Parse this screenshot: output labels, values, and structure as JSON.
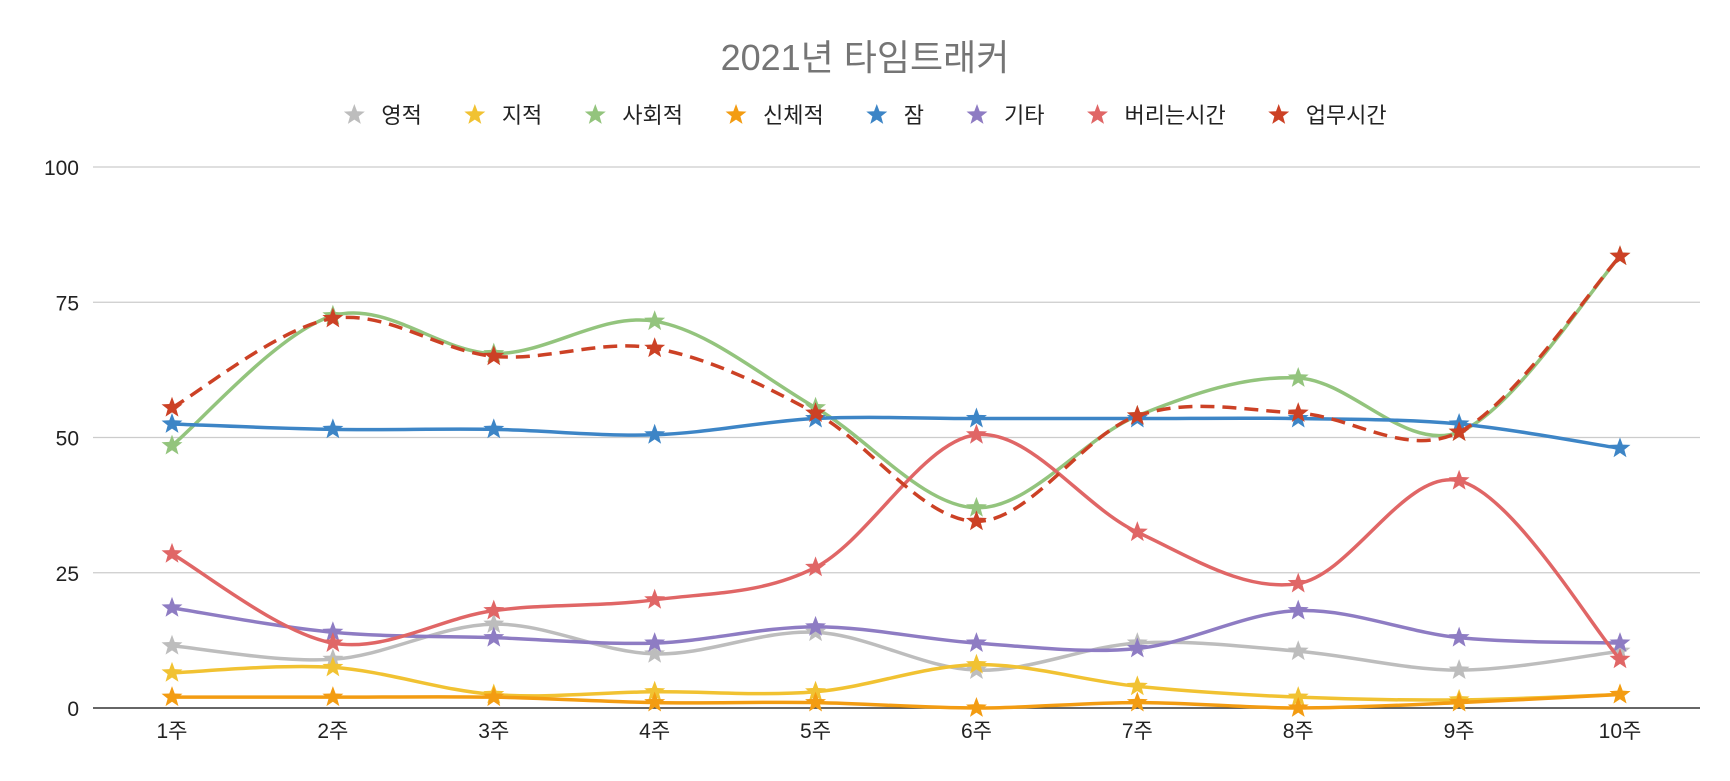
{
  "chart_data": {
    "type": "line",
    "title": "2021년 타임트래커",
    "xlabel": "",
    "ylabel": "",
    "categories": [
      "1주",
      "2주",
      "3주",
      "4주",
      "5주",
      "6주",
      "7주",
      "8주",
      "9주",
      "10주"
    ],
    "ylim": [
      0,
      100
    ],
    "yticks": [
      "0",
      "25",
      "50",
      "75",
      "100"
    ],
    "grid": true,
    "legend_position": "top",
    "series": [
      {
        "name": "영적",
        "color": "#bdbdbd",
        "dashed": false,
        "values": [
          11.5,
          9,
          15.5,
          10,
          14,
          7,
          12,
          10.5,
          7,
          10.5
        ]
      },
      {
        "name": "지적",
        "color": "#f1c232",
        "dashed": false,
        "values": [
          6.5,
          7.5,
          2.5,
          3,
          3,
          8,
          4,
          2,
          1.5,
          2.5
        ]
      },
      {
        "name": "사회적",
        "color": "#93c47d",
        "dashed": false,
        "values": [
          48.5,
          72.5,
          65.5,
          71.5,
          55.5,
          37,
          54,
          61,
          51,
          83.5
        ]
      },
      {
        "name": "신체적",
        "color": "#f39c12",
        "dashed": false,
        "values": [
          2,
          2,
          2,
          1,
          1,
          0,
          1,
          0,
          1,
          2.5
        ]
      },
      {
        "name": "잠",
        "color": "#3d85c6",
        "dashed": false,
        "values": [
          52.5,
          51.5,
          51.5,
          50.5,
          53.5,
          53.5,
          53.5,
          53.5,
          52.5,
          48
        ]
      },
      {
        "name": "기타",
        "color": "#8e7cc3",
        "dashed": false,
        "values": [
          18.5,
          14,
          13,
          12,
          15,
          12,
          11,
          18,
          13,
          12
        ]
      },
      {
        "name": "버리는시간",
        "color": "#e06666",
        "dashed": false,
        "values": [
          28.5,
          12,
          18,
          20,
          26,
          50.5,
          32.5,
          23,
          42,
          9
        ]
      },
      {
        "name": "업무시간",
        "color": "#cc4125",
        "dashed": true,
        "values": [
          55.5,
          72,
          65,
          66.5,
          54.5,
          34.5,
          54,
          54.5,
          51,
          83.5
        ]
      }
    ]
  }
}
